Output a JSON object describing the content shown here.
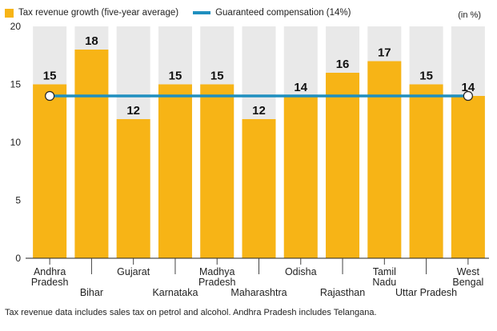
{
  "legend": {
    "bar_label": "Tax revenue growth (five-year average)",
    "line_label": "Guaranteed compensation (14%)"
  },
  "unit_label": "(in %)",
  "footnote": "Tax revenue data includes sales tax on petrol and alcohol.  Andhra Pradesh includes Telangana.",
  "colors": {
    "bar": "#f7b416",
    "band": "#e9e9e9",
    "line": "#1f8fbf"
  },
  "chart_data": {
    "type": "bar",
    "categories": [
      "Andhra Pradesh",
      "Bihar",
      "Gujarat",
      "Karnataka",
      "Madhya Pradesh",
      "Maharashtra",
      "Odisha",
      "Rajasthan",
      "Tamil Nadu",
      "Uttar Pradesh",
      "West Bengal"
    ],
    "category_label_lines": [
      [
        "Andhra",
        "Pradesh"
      ],
      [
        "Bihar"
      ],
      [
        "Gujarat"
      ],
      [
        "Karnataka"
      ],
      [
        "Madhya",
        "Pradesh"
      ],
      [
        "Maharashtra"
      ],
      [
        "Odisha"
      ],
      [
        "Rajasthan"
      ],
      [
        "Tamil",
        "Nadu"
      ],
      [
        "Uttar Pradesh"
      ],
      [
        "West",
        "Bengal"
      ]
    ],
    "series": [
      {
        "name": "Tax revenue growth (five-year average)",
        "values": [
          15,
          18,
          12,
          15,
          15,
          12,
          14,
          16,
          17,
          15,
          14
        ]
      }
    ],
    "reference_line": {
      "name": "Guaranteed compensation (14%)",
      "value": 14
    },
    "ylim": [
      0,
      20
    ],
    "yticks": [
      0,
      5,
      10,
      15,
      20
    ],
    "xlabel": "",
    "ylabel": "",
    "legend_position": "top-left",
    "grid": false
  }
}
